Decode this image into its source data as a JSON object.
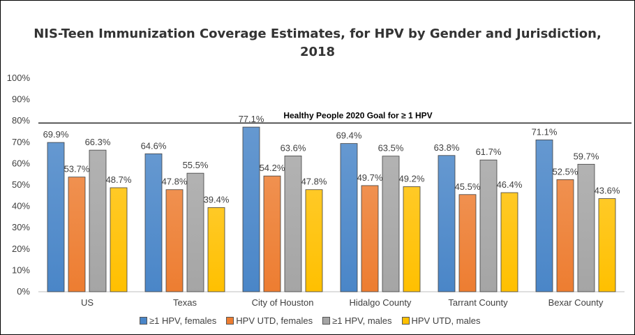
{
  "chart_data": {
    "type": "bar",
    "title": "NIS-Teen Immunization Coverage Estimates, for HPV by Gender and Jurisdiction, 2018",
    "title_line1": "NIS-Teen Immunization Coverage Estimates, for HPV by Gender and Jurisdiction,",
    "title_line2": "2018",
    "categories": [
      "US",
      "Texas",
      "City of Houston",
      "Hidalgo County",
      "Tarrant County",
      "Bexar County"
    ],
    "series": [
      {
        "name": "≥1 HPV, females",
        "values": [
          69.9,
          64.6,
          77.1,
          69.4,
          63.8,
          71.1
        ],
        "color": "#4a86c8"
      },
      {
        "name": "HPV UTD, females",
        "values": [
          53.7,
          47.8,
          54.2,
          49.7,
          45.5,
          52.5
        ],
        "color": "#ed7d31"
      },
      {
        "name": "≥1 HPV, males",
        "values": [
          66.3,
          55.5,
          63.6,
          63.5,
          61.7,
          59.7
        ],
        "color": "#a5a5a5"
      },
      {
        "name": "HPV UTD, males",
        "values": [
          48.7,
          39.4,
          47.8,
          49.2,
          46.4,
          43.6
        ],
        "color": "#ffc000"
      }
    ],
    "yticks": [
      "0%",
      "10%",
      "20%",
      "30%",
      "40%",
      "50%",
      "60%",
      "70%",
      "80%",
      "90%",
      "100%"
    ],
    "ylim": [
      0,
      100
    ],
    "goal": {
      "value": 79,
      "label": "Healthy People 2020 Goal for ≥ 1 HPV"
    },
    "xlabel": "",
    "ylabel": "",
    "legend_position": "bottom"
  }
}
